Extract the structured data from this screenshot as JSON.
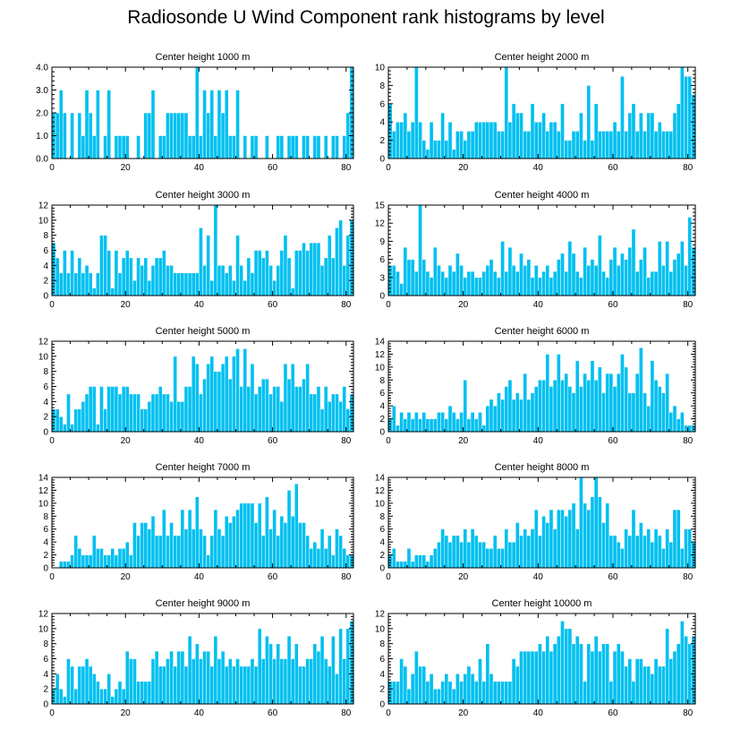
{
  "title": "Radiosonde U Wind Component rank histograms by level",
  "bar_color": "#00c0f0",
  "chart_data": [
    {
      "type": "bar",
      "title": "Center height 1000 m",
      "xlim": [
        0,
        82
      ],
      "ylim": [
        0,
        4
      ],
      "xticks": [
        0,
        20,
        40,
        60,
        80
      ],
      "yticks": [
        0,
        1,
        2,
        3,
        4
      ],
      "ytick_labels": [
        "0.0",
        "1.0",
        "2.0",
        "3.0",
        "4.0"
      ],
      "values": [
        2,
        2,
        3,
        2,
        0,
        2,
        0,
        2,
        1,
        3,
        2,
        1,
        3,
        0,
        1,
        3,
        0,
        1,
        1,
        1,
        1,
        0,
        0,
        1,
        0,
        2,
        2,
        3,
        0,
        1,
        1,
        2,
        2,
        2,
        2,
        2,
        2,
        1,
        1,
        4,
        1,
        3,
        2,
        3,
        1,
        3,
        2,
        3,
        1,
        1,
        3,
        0,
        1,
        0,
        1,
        1,
        0,
        0,
        1,
        0,
        0,
        1,
        1,
        0,
        1,
        1,
        1,
        0,
        1,
        1,
        0,
        1,
        1,
        0,
        1,
        0,
        1,
        1,
        0,
        1,
        2,
        4
      ]
    },
    {
      "type": "bar",
      "title": "Center height 2000 m",
      "xlim": [
        0,
        82
      ],
      "ylim": [
        0,
        10
      ],
      "xticks": [
        0,
        20,
        40,
        60,
        80
      ],
      "yticks": [
        0,
        2,
        4,
        6,
        8,
        10
      ],
      "ytick_labels": [
        "0",
        "2",
        "4",
        "6",
        "8",
        "10"
      ],
      "values": [
        6,
        3,
        4,
        4,
        5,
        3,
        4,
        10,
        4,
        2,
        1,
        4,
        2,
        2,
        5,
        2,
        4,
        1,
        3,
        3,
        2,
        3,
        3,
        4,
        4,
        4,
        4,
        4,
        4,
        3,
        3,
        10,
        4,
        6,
        5,
        5,
        3,
        3,
        6,
        4,
        4,
        5,
        3,
        4,
        4,
        3,
        6,
        2,
        2,
        3,
        3,
        5,
        2,
        8,
        2,
        6,
        3,
        3,
        3,
        3,
        4,
        3,
        9,
        3,
        5,
        6,
        3,
        5,
        3,
        5,
        5,
        3,
        4,
        3,
        3,
        3,
        5,
        6,
        10,
        9,
        9,
        7
      ]
    },
    {
      "type": "bar",
      "title": "Center height 3000 m",
      "xlim": [
        0,
        82
      ],
      "ylim": [
        0,
        12
      ],
      "xticks": [
        0,
        20,
        40,
        60,
        80
      ],
      "yticks": [
        0,
        2,
        4,
        6,
        8,
        10,
        12
      ],
      "ytick_labels": [
        "0",
        "2",
        "4",
        "6",
        "8",
        "10",
        "12"
      ],
      "values": [
        7,
        5,
        3,
        6,
        3,
        6,
        3,
        5,
        3,
        4,
        3,
        1,
        3,
        8,
        8,
        6,
        1,
        6,
        3,
        5,
        6,
        5,
        2,
        5,
        4,
        5,
        2,
        4,
        5,
        5,
        6,
        4,
        4,
        3,
        3,
        3,
        3,
        3,
        3,
        3,
        9,
        4,
        8,
        2,
        12,
        4,
        4,
        3,
        4,
        2,
        8,
        4,
        2,
        5,
        3,
        6,
        6,
        5,
        6,
        4,
        2,
        4,
        6,
        8,
        5,
        1,
        6,
        6,
        7,
        6,
        7,
        7,
        7,
        4,
        5,
        8,
        5,
        9,
        10,
        4,
        8,
        10
      ]
    },
    {
      "type": "bar",
      "title": "Center height 4000 m",
      "xlim": [
        0,
        82
      ],
      "ylim": [
        0,
        15
      ],
      "xticks": [
        0,
        20,
        40,
        60,
        80
      ],
      "yticks": [
        0,
        3,
        6,
        9,
        12,
        15
      ],
      "ytick_labels": [
        "0",
        "3",
        "6",
        "9",
        "12",
        "15"
      ],
      "values": [
        5,
        5,
        4,
        2,
        8,
        6,
        6,
        4,
        15,
        6,
        4,
        3,
        8,
        5,
        4,
        3,
        5,
        4,
        7,
        5,
        3,
        4,
        4,
        3,
        3,
        4,
        5,
        6,
        4,
        3,
        9,
        4,
        8,
        5,
        4,
        7,
        5,
        6,
        3,
        5,
        3,
        4,
        5,
        3,
        4,
        6,
        7,
        4,
        9,
        7,
        4,
        3,
        8,
        5,
        6,
        5,
        10,
        4,
        3,
        6,
        8,
        5,
        7,
        6,
        8,
        11,
        4,
        6,
        8,
        3,
        4,
        4,
        9,
        5,
        9,
        4,
        6,
        7,
        9,
        5,
        13,
        8
      ]
    },
    {
      "type": "bar",
      "title": "Center height 5000 m",
      "xlim": [
        0,
        82
      ],
      "ylim": [
        0,
        12
      ],
      "xticks": [
        0,
        20,
        40,
        60,
        80
      ],
      "yticks": [
        0,
        2,
        4,
        6,
        8,
        10,
        12
      ],
      "ytick_labels": [
        "0",
        "2",
        "4",
        "6",
        "8",
        "10",
        "12"
      ],
      "values": [
        3,
        3,
        2,
        1,
        5,
        1,
        3,
        3,
        4,
        5,
        6,
        6,
        1,
        6,
        3,
        6,
        6,
        6,
        5,
        6,
        6,
        5,
        5,
        5,
        3,
        3,
        4,
        5,
        5,
        6,
        5,
        5,
        4,
        10,
        4,
        4,
        6,
        6,
        10,
        9,
        5,
        7,
        9,
        10,
        8,
        8,
        9,
        10,
        7,
        10,
        11,
        6,
        11,
        6,
        9,
        5,
        6,
        7,
        7,
        5,
        6,
        6,
        4,
        9,
        7,
        9,
        6,
        6,
        7,
        9,
        5,
        5,
        6,
        3,
        6,
        4,
        5,
        5,
        4,
        6,
        3,
        5
      ]
    },
    {
      "type": "bar",
      "title": "Center height 6000 m",
      "xlim": [
        0,
        82
      ],
      "ylim": [
        0,
        14
      ],
      "xticks": [
        0,
        20,
        40,
        60,
        80
      ],
      "yticks": [
        0,
        2,
        4,
        6,
        8,
        10,
        12,
        14
      ],
      "ytick_labels": [
        "0",
        "2",
        "4",
        "6",
        "8",
        "10",
        "12",
        "14"
      ],
      "values": [
        2,
        4,
        1,
        3,
        2,
        3,
        2,
        3,
        2,
        3,
        2,
        2,
        2,
        3,
        3,
        2,
        4,
        3,
        2,
        3,
        8,
        2,
        3,
        2,
        3,
        1,
        4,
        5,
        4,
        6,
        5,
        7,
        8,
        5,
        6,
        5,
        9,
        5,
        6,
        7,
        8,
        8,
        12,
        7,
        8,
        12,
        8,
        9,
        7,
        6,
        11,
        7,
        9,
        8,
        11,
        8,
        10,
        6,
        9,
        9,
        7,
        9,
        12,
        10,
        6,
        6,
        9,
        13,
        6,
        4,
        11,
        8,
        7,
        6,
        9,
        3,
        4,
        2,
        3,
        1,
        1,
        1
      ]
    },
    {
      "type": "bar",
      "title": "Center height 7000 m",
      "xlim": [
        0,
        82
      ],
      "ylim": [
        0,
        14
      ],
      "xticks": [
        0,
        20,
        40,
        60,
        80
      ],
      "yticks": [
        0,
        2,
        4,
        6,
        8,
        10,
        12,
        14
      ],
      "ytick_labels": [
        "0",
        "2",
        "4",
        "6",
        "8",
        "10",
        "12",
        "14"
      ],
      "values": [
        0,
        0,
        1,
        1,
        1,
        2,
        5,
        3,
        2,
        2,
        2,
        5,
        3,
        3,
        2,
        2,
        3,
        2,
        3,
        3,
        4,
        2,
        7,
        5,
        7,
        7,
        6,
        8,
        5,
        5,
        9,
        5,
        7,
        5,
        5,
        9,
        6,
        9,
        6,
        11,
        6,
        5,
        2,
        5,
        9,
        6,
        5,
        8,
        7,
        8,
        9,
        10,
        10,
        10,
        10,
        7,
        10,
        5,
        11,
        6,
        9,
        5,
        8,
        7,
        12,
        8,
        13,
        7,
        7,
        5,
        3,
        4,
        3,
        6,
        3,
        5,
        2,
        6,
        5,
        3,
        2,
        2
      ]
    },
    {
      "type": "bar",
      "title": "Center height 8000 m",
      "xlim": [
        0,
        82
      ],
      "ylim": [
        0,
        14
      ],
      "xticks": [
        0,
        20,
        40,
        60,
        80
      ],
      "yticks": [
        0,
        2,
        4,
        6,
        8,
        10,
        12,
        14
      ],
      "ytick_labels": [
        "0",
        "2",
        "4",
        "6",
        "8",
        "10",
        "12",
        "14"
      ],
      "values": [
        2,
        3,
        1,
        1,
        1,
        3,
        1,
        2,
        2,
        2,
        1,
        2,
        3,
        4,
        6,
        5,
        4,
        5,
        5,
        4,
        6,
        4,
        6,
        5,
        4,
        4,
        3,
        3,
        5,
        3,
        3,
        6,
        4,
        4,
        7,
        5,
        6,
        5,
        6,
        9,
        5,
        8,
        7,
        9,
        6,
        9,
        9,
        8,
        9,
        10,
        6,
        14,
        10,
        9,
        11,
        14,
        11,
        7,
        10,
        5,
        5,
        4,
        3,
        6,
        5,
        9,
        5,
        7,
        5,
        6,
        4,
        6,
        5,
        3,
        6,
        4,
        9,
        9,
        3,
        6,
        6,
        4
      ]
    },
    {
      "type": "bar",
      "title": "Center height 9000 m",
      "xlim": [
        0,
        82
      ],
      "ylim": [
        0,
        12
      ],
      "xticks": [
        0,
        20,
        40,
        60,
        80
      ],
      "yticks": [
        0,
        2,
        4,
        6,
        8,
        10,
        12
      ],
      "ytick_labels": [
        "0",
        "2",
        "4",
        "6",
        "8",
        "10",
        "12"
      ],
      "values": [
        2,
        4,
        2,
        1,
        6,
        5,
        2,
        5,
        5,
        6,
        5,
        4,
        3,
        2,
        2,
        4,
        1,
        2,
        3,
        2,
        7,
        6,
        6,
        3,
        3,
        3,
        3,
        6,
        7,
        5,
        5,
        6,
        7,
        5,
        7,
        7,
        5,
        9,
        6,
        8,
        6,
        7,
        7,
        5,
        9,
        6,
        7,
        5,
        6,
        5,
        6,
        5,
        5,
        5,
        6,
        5,
        10,
        6,
        9,
        8,
        6,
        8,
        6,
        6,
        9,
        6,
        8,
        5,
        5,
        6,
        6,
        8,
        7,
        9,
        6,
        5,
        9,
        4,
        10,
        6,
        10,
        11
      ]
    },
    {
      "type": "bar",
      "title": "Center height 10000 m",
      "xlim": [
        0,
        82
      ],
      "ylim": [
        0,
        12
      ],
      "xticks": [
        0,
        20,
        40,
        60,
        80
      ],
      "yticks": [
        0,
        2,
        4,
        6,
        8,
        10,
        12
      ],
      "ytick_labels": [
        "0",
        "2",
        "4",
        "6",
        "8",
        "10",
        "12"
      ],
      "values": [
        3,
        3,
        3,
        6,
        5,
        2,
        4,
        7,
        5,
        5,
        3,
        4,
        2,
        2,
        3,
        4,
        3,
        2,
        4,
        3,
        4,
        5,
        4,
        3,
        6,
        3,
        8,
        4,
        3,
        3,
        3,
        3,
        3,
        6,
        5,
        7,
        7,
        7,
        7,
        7,
        8,
        7,
        9,
        7,
        8,
        9,
        11,
        10,
        10,
        8,
        9,
        8,
        3,
        8,
        7,
        9,
        7,
        8,
        8,
        3,
        7,
        8,
        7,
        5,
        6,
        3,
        6,
        6,
        5,
        5,
        4,
        6,
        5,
        5,
        10,
        6,
        7,
        8,
        11,
        9,
        8,
        9
      ]
    }
  ]
}
